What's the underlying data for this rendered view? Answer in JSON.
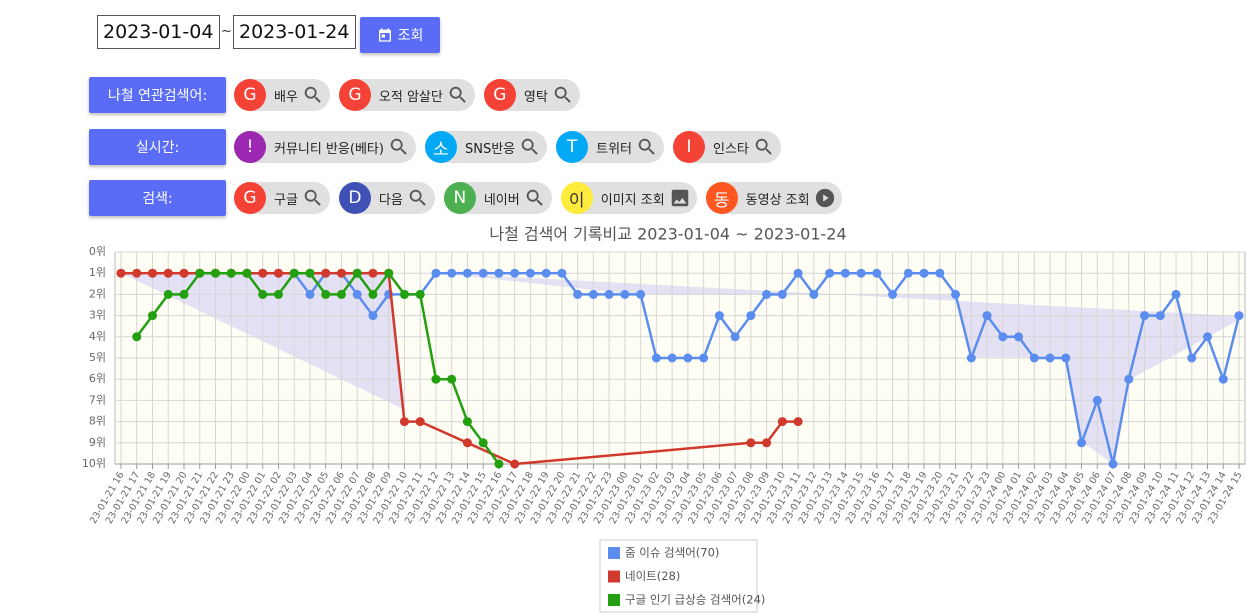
{
  "header": {
    "date_from": "2023-01-04",
    "separator": "~",
    "date_to": "2023-01-24",
    "search_button": "조회"
  },
  "rows": [
    {
      "label": "나철 연관검색어:",
      "chips": [
        {
          "letter": "G",
          "text": "배우",
          "color": "#f44336",
          "icon": "search"
        },
        {
          "letter": "G",
          "text": "오적 암살단",
          "color": "#f44336",
          "icon": "search"
        },
        {
          "letter": "G",
          "text": "영탁",
          "color": "#f44336",
          "icon": "search"
        }
      ]
    },
    {
      "label": "실시간:",
      "chips": [
        {
          "letter": "!",
          "text": "커뮤니티 반응(베타)",
          "color": "#9c27b0",
          "icon": "search"
        },
        {
          "letter": "소",
          "text": "SNS반응",
          "color": "#03a9f4",
          "icon": "search"
        },
        {
          "letter": "T",
          "text": "트위터",
          "color": "#03a9f4",
          "icon": "search"
        },
        {
          "letter": "I",
          "text": "인스타",
          "color": "#f44336",
          "icon": "search"
        }
      ]
    },
    {
      "label": "검색:",
      "chips": [
        {
          "letter": "G",
          "text": "구글",
          "color": "#f44336",
          "icon": "search"
        },
        {
          "letter": "D",
          "text": "다음",
          "color": "#3f51b5",
          "icon": "search"
        },
        {
          "letter": "N",
          "text": "네이버",
          "color": "#4caf50",
          "icon": "search"
        },
        {
          "letter": "이",
          "text": "이미지 조회",
          "color": "#ffeb3b",
          "icon": "image"
        },
        {
          "letter": "동",
          "text": "동영상 조회",
          "color": "#ff5722",
          "icon": "play"
        }
      ]
    }
  ],
  "chart_data": {
    "type": "line",
    "title": "나철 검색어 기록비교 2023-01-04 ~ 2023-01-24",
    "y_inverted": true,
    "grid": true,
    "ylim": [
      0,
      10
    ],
    "yticks": [
      {
        "value": 0,
        "label": "0위"
      },
      {
        "value": 1,
        "label": "1위"
      },
      {
        "value": 2,
        "label": "2위"
      },
      {
        "value": 3,
        "label": "3위"
      },
      {
        "value": 4,
        "label": "4위"
      },
      {
        "value": 5,
        "label": "5위"
      },
      {
        "value": 6,
        "label": "6위"
      },
      {
        "value": 7,
        "label": "7위"
      },
      {
        "value": 8,
        "label": "8위"
      },
      {
        "value": 9,
        "label": "9위"
      },
      {
        "value": 10,
        "label": "10위"
      }
    ],
    "categories": [
      "23-01-21 16",
      "23-01-21 17",
      "23-01-21 18",
      "23-01-21 19",
      "23-01-21 20",
      "23-01-21 21",
      "23-01-21 22",
      "23-01-21 23",
      "23-01-22 00",
      "23-01-22 01",
      "23-01-22 02",
      "23-01-22 03",
      "23-01-22 04",
      "23-01-22 05",
      "23-01-22 06",
      "23-01-22 07",
      "23-01-22 08",
      "23-01-22 09",
      "23-01-22 10",
      "23-01-22 11",
      "23-01-22 12",
      "23-01-22 13",
      "23-01-22 14",
      "23-01-22 15",
      "23-01-22 16",
      "23-01-22 17",
      "23-01-22 18",
      "23-01-22 19",
      "23-01-22 20",
      "23-01-22 21",
      "23-01-22 22",
      "23-01-22 23",
      "23-01-23 00",
      "23-01-23 01",
      "23-01-23 02",
      "23-01-23 03",
      "23-01-23 04",
      "23-01-23 05",
      "23-01-23 06",
      "23-01-23 07",
      "23-01-23 08",
      "23-01-23 09",
      "23-01-23 10",
      "23-01-23 11",
      "23-01-23 12",
      "23-01-23 13",
      "23-01-23 14",
      "23-01-23 15",
      "23-01-23 16",
      "23-01-23 17",
      "23-01-23 18",
      "23-01-23 19",
      "23-01-23 20",
      "23-01-23 21",
      "23-01-23 22",
      "23-01-23 23",
      "23-01-24 00",
      "23-01-24 01",
      "23-01-24 02",
      "23-01-24 03",
      "23-01-24 04",
      "23-01-24 05",
      "23-01-24 06",
      "23-01-24 07",
      "23-01-24 08",
      "23-01-24 09",
      "23-01-24 10",
      "23-01-24 11",
      "23-01-24 12",
      "23-01-24 13",
      "23-01-24 14",
      "23-01-24 15"
    ],
    "series": [
      {
        "name": "줌 이슈 검색어(70)",
        "color": "#5b8def",
        "values": [
          null,
          null,
          1,
          1,
          1,
          1,
          1,
          1,
          1,
          1,
          1,
          1,
          2,
          1,
          1,
          2,
          3,
          2,
          2,
          2,
          1,
          1,
          1,
          1,
          1,
          1,
          1,
          1,
          1,
          2,
          2,
          2,
          2,
          2,
          5,
          5,
          5,
          5,
          3,
          4,
          3,
          2,
          2,
          1,
          2,
          1,
          1,
          1,
          1,
          2,
          1,
          1,
          1,
          2,
          5,
          3,
          4,
          4,
          5,
          5,
          5,
          9,
          7,
          10,
          6,
          3,
          3,
          2,
          5,
          4,
          6,
          3
        ]
      },
      {
        "name": "네이트(28)",
        "color": "#d0392b",
        "values": [
          1,
          1,
          1,
          1,
          1,
          1,
          1,
          1,
          1,
          1,
          1,
          1,
          1,
          1,
          1,
          1,
          1,
          1,
          8,
          8,
          null,
          null,
          9,
          null,
          null,
          10,
          null,
          null,
          null,
          null,
          null,
          null,
          null,
          null,
          null,
          null,
          null,
          null,
          null,
          null,
          9,
          9,
          8,
          8,
          null,
          null,
          null,
          null,
          null,
          null,
          null,
          null,
          null,
          null,
          null,
          null,
          null,
          null,
          null,
          null,
          null,
          null,
          null,
          null,
          null,
          null,
          null,
          null,
          null,
          null,
          null,
          null
        ]
      },
      {
        "name": "구글 인기 급상승 검색어(24)",
        "color": "#22a00f",
        "values": [
          null,
          4,
          3,
          2,
          2,
          1,
          1,
          1,
          1,
          2,
          2,
          1,
          1,
          2,
          2,
          1,
          2,
          1,
          2,
          2,
          6,
          6,
          8,
          9,
          10,
          null,
          null,
          null,
          null,
          null,
          null,
          null,
          null,
          null,
          null,
          null,
          null,
          null,
          null,
          null,
          null,
          null,
          null,
          null,
          null,
          null,
          null,
          null,
          null,
          null,
          null,
          null,
          null,
          null,
          null,
          null,
          null,
          null,
          null,
          null,
          null,
          null,
          null,
          null,
          null,
          null,
          null,
          null,
          null,
          null,
          null,
          null
        ]
      }
    ]
  }
}
